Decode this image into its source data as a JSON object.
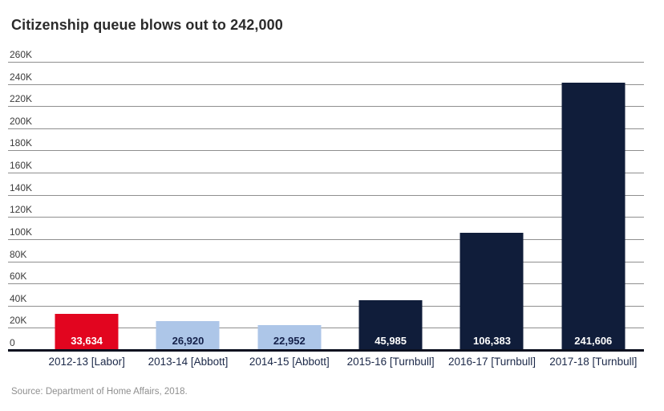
{
  "page": {
    "title": "Citizenship queue blows out to 242,000",
    "source": "Source: Department of Home Affairs, 2018."
  },
  "chart_data": {
    "type": "bar",
    "title": "Citizenship queue blows out to 242,000",
    "categories": [
      "2012-13 [Labor]",
      "2013-14 [Abbott]",
      "2014-15 [Abbott]",
      "2015-16 [Turnbull]",
      "2016-17 [Turnbull]",
      "2017-18 [Turnbull]"
    ],
    "values": [
      33634,
      26920,
      22952,
      45985,
      106383,
      241606
    ],
    "value_labels": [
      "33,634",
      "26,920",
      "22,952",
      "45,985",
      "106,383",
      "241,606"
    ],
    "bar_colors": [
      "#e2051f",
      "#adc6e8",
      "#adc6e8",
      "#101d3a",
      "#101d3a",
      "#101d3a"
    ],
    "value_label_colors": [
      "#ffffff",
      "#15214a",
      "#15214a",
      "#ffffff",
      "#ffffff",
      "#ffffff"
    ],
    "xlabel": "",
    "ylabel": "",
    "ylim": [
      0,
      260000
    ],
    "y_ticks": [
      0,
      20000,
      40000,
      60000,
      80000,
      100000,
      120000,
      140000,
      160000,
      180000,
      200000,
      220000,
      240000,
      260000
    ],
    "y_tick_labels": [
      "0",
      "20K",
      "40K",
      "60K",
      "80K",
      "100K",
      "120K",
      "140K",
      "160K",
      "180K",
      "200K",
      "220K",
      "240K",
      "260K"
    ],
    "grid": true,
    "legend": null,
    "source": "Source: Department of Home Affairs, 2018."
  },
  "colors": {
    "background": "#ffffff",
    "gridline": "#8f8f8f",
    "baseline": "#0b101f",
    "tick_label": "#3b3b3b",
    "category_label": "#1b2848",
    "title": "#2b2b2b",
    "source": "#8f8f8f",
    "accent_red": "#e2051f",
    "accent_light_blue": "#adc6e8",
    "accent_navy": "#101d3a"
  }
}
